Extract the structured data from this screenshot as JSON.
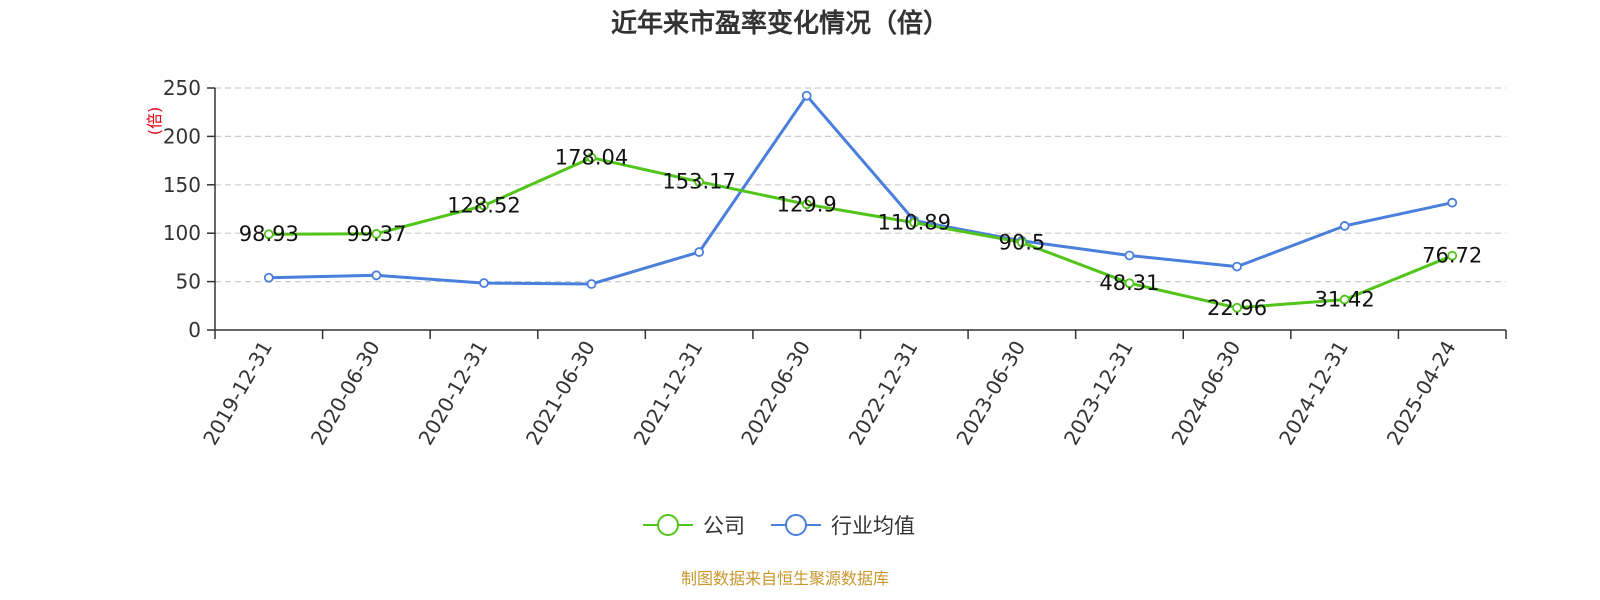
{
  "chart_data": {
    "type": "line",
    "title": "近年来市盈率变化情况（倍）",
    "ylabel": "(倍)",
    "ylim": [
      0,
      250
    ],
    "yticks": [
      0,
      50,
      100,
      150,
      200,
      250
    ],
    "grid": true,
    "legend_position": "bottom-center",
    "categories": [
      "2019-12-31",
      "2020-06-30",
      "2020-12-31",
      "2021-06-30",
      "2021-12-31",
      "2022-06-30",
      "2022-12-31",
      "2023-06-30",
      "2023-12-31",
      "2024-06-30",
      "2024-12-31",
      "2025-04-24"
    ],
    "series": [
      {
        "name": "公司",
        "color": "#52c41a",
        "values": [
          98.93,
          99.37,
          128.52,
          178.04,
          153.17,
          129.9,
          110.89,
          90.5,
          48.31,
          22.96,
          31.42,
          76.72
        ],
        "labels": [
          "98.93",
          "99.37",
          "128.52",
          "178.04",
          "153.17",
          "129.9",
          "110.89",
          "90.5",
          "48.31",
          "22.96",
          "31.42",
          "76.72"
        ]
      },
      {
        "name": "行业均值",
        "color": "#4a7fdc",
        "values": [
          54,
          56.5,
          48.5,
          47.5,
          80.5,
          242,
          113,
          92,
          77,
          65.5,
          107.5,
          131.5
        ]
      }
    ]
  },
  "source": "制图数据来自恒生聚源数据库"
}
